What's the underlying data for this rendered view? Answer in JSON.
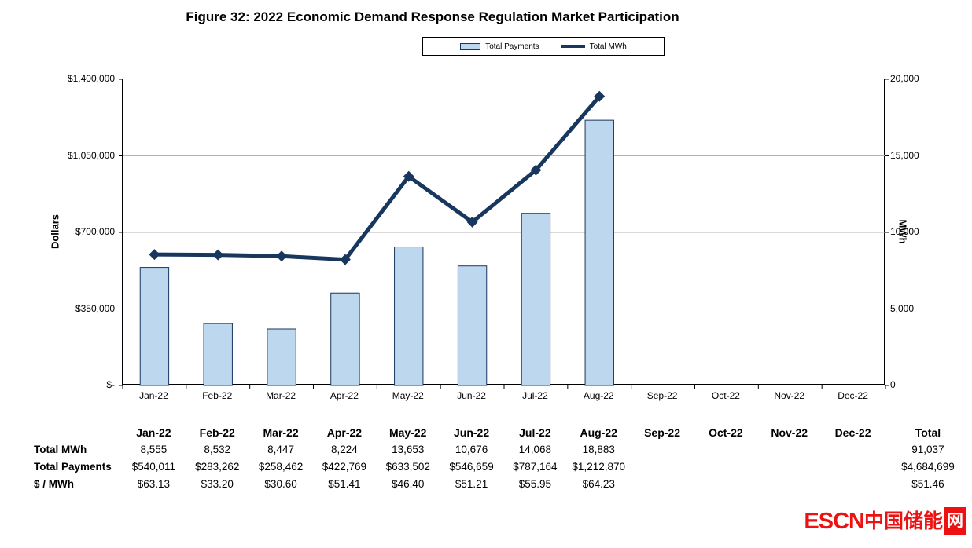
{
  "title": "Figure 32: 2022 Economic Demand Response Regulation Market Participation",
  "colors": {
    "bar_fill": "#BDD7EE",
    "bar_border": "#17375E",
    "line": "#17375E",
    "gridline": "#b3b3b3",
    "logo_red": "#ee1111"
  },
  "chart_data": {
    "type": "combo",
    "categories": [
      "Jan-22",
      "Feb-22",
      "Mar-22",
      "Apr-22",
      "May-22",
      "Jun-22",
      "Jul-22",
      "Aug-22",
      "Sep-22",
      "Oct-22",
      "Nov-22",
      "Dec-22"
    ],
    "series": [
      {
        "name": "Total Payments",
        "type": "bar",
        "axis": "left",
        "values": [
          540011,
          283262,
          258462,
          422769,
          633502,
          546659,
          787164,
          1212870,
          null,
          null,
          null,
          null
        ]
      },
      {
        "name": "Total MWh",
        "type": "line",
        "axis": "right",
        "values": [
          8555,
          8532,
          8447,
          8224,
          13653,
          10676,
          14068,
          18883,
          null,
          null,
          null,
          null
        ]
      }
    ],
    "left_axis": {
      "label": "Dollars",
      "min": 0,
      "max": 1400000,
      "ticks": [
        "$-",
        "$350,000",
        "$700,000",
        "$1,050,000",
        "$1,400,000"
      ]
    },
    "right_axis": {
      "label": "MWh",
      "min": 0,
      "max": 20000,
      "ticks": [
        "0",
        "5,000",
        "10,000",
        "15,000",
        "20,000"
      ]
    },
    "grid": "horizontal",
    "legend_position": "top-center"
  },
  "table": {
    "columns": [
      "Jan-22",
      "Feb-22",
      "Mar-22",
      "Apr-22",
      "May-22",
      "Jun-22",
      "Jul-22",
      "Aug-22",
      "Sep-22",
      "Oct-22",
      "Nov-22",
      "Dec-22",
      "Total"
    ],
    "rows": [
      {
        "label": "Total MWh",
        "values": [
          "8,555",
          "8,532",
          "8,447",
          "8,224",
          "13,653",
          "10,676",
          "14,068",
          "18,883",
          "",
          "",
          "",
          "",
          "91,037"
        ]
      },
      {
        "label": "Total Payments",
        "values": [
          "$540,011",
          "$283,262",
          "$258,462",
          "$422,769",
          "$633,502",
          "$546,659",
          "$787,164",
          "$1,212,870",
          "",
          "",
          "",
          "",
          "$4,684,699"
        ]
      },
      {
        "label": "$ / MWh",
        "values": [
          "$63.13",
          "$33.20",
          "$30.60",
          "$51.41",
          "$46.40",
          "$51.21",
          "$55.95",
          "$64.23",
          "",
          "",
          "",
          "",
          "$51.46"
        ]
      }
    ]
  },
  "watermark": {
    "text_en": "ESCN",
    "text_cn": "中国储能",
    "text_boxed": "网"
  }
}
